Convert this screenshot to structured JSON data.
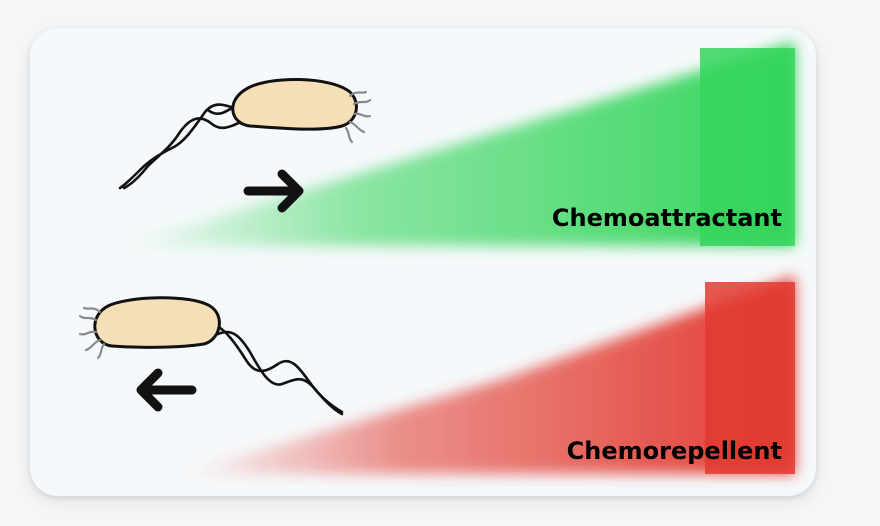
{
  "panels": [
    {
      "label": "Chemoattractant",
      "gradient_color": "#35d55c",
      "direction": "right"
    },
    {
      "label": "Chemorepellent",
      "gradient_color": "#e23b31",
      "direction": "left"
    }
  ],
  "colors": {
    "bacterium_body": "#f5dfb6",
    "outline": "#111111",
    "pili": "#8a8a8a",
    "background": "#f6f9fb"
  }
}
